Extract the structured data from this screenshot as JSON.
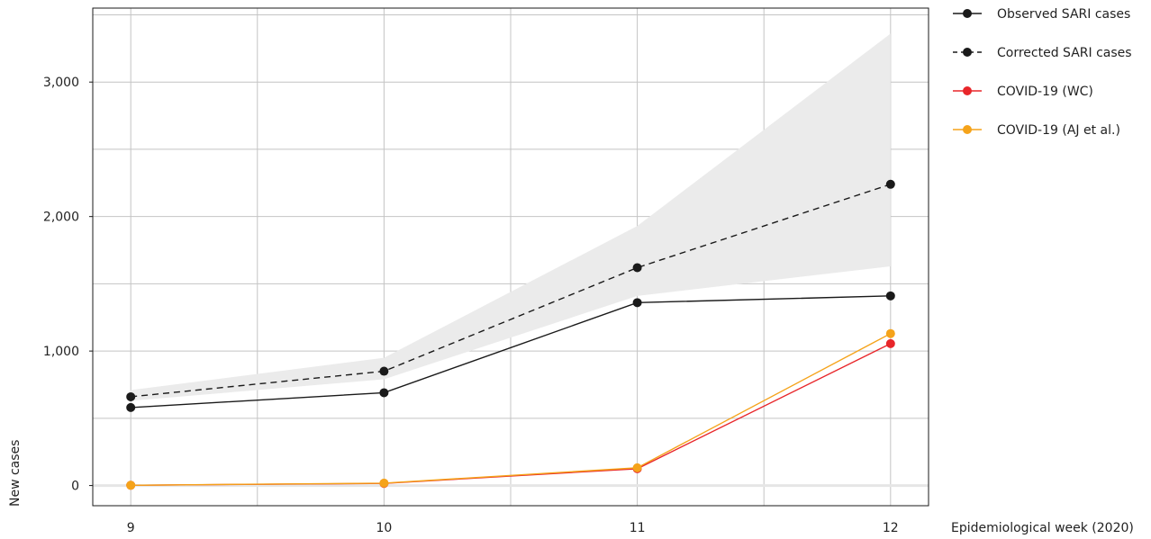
{
  "chart_data": {
    "type": "line",
    "xlabel": "Epidemiological week (2020)",
    "ylabel": "New cases",
    "x": [
      9,
      10,
      11,
      12
    ],
    "x_ticks": [
      "9",
      "10",
      "11",
      "12"
    ],
    "xlim": [
      8.85,
      12.15
    ],
    "ylim": [
      -150,
      3550
    ],
    "y_ticks": [
      0,
      1000,
      2000,
      3000
    ],
    "y_tick_labels": [
      "0",
      "1,000",
      "2,000",
      "3,000"
    ],
    "grid": true,
    "legend_position": "right-top",
    "band": {
      "series": "Corrected SARI cases",
      "color": "#ebebeb",
      "lower": [
        630,
        790,
        1410,
        1630
      ],
      "upper": [
        710,
        950,
        1930,
        3360
      ]
    },
    "series": [
      {
        "name": "Observed SARI cases",
        "color": "#1a1a1a",
        "dash": "solid",
        "values": [
          580,
          690,
          1360,
          1410
        ]
      },
      {
        "name": "Corrected SARI cases",
        "color": "#1a1a1a",
        "dash": "dashed",
        "values": [
          660,
          850,
          1620,
          2240
        ]
      },
      {
        "name": "COVID-19 (WC)",
        "color": "#e8262a",
        "dash": "solid",
        "values": [
          2,
          16,
          125,
          1055
        ]
      },
      {
        "name": "COVID-19 (AJ et al.)",
        "color": "#f5a31a",
        "dash": "solid",
        "values": [
          2,
          18,
          132,
          1130
        ]
      }
    ]
  }
}
